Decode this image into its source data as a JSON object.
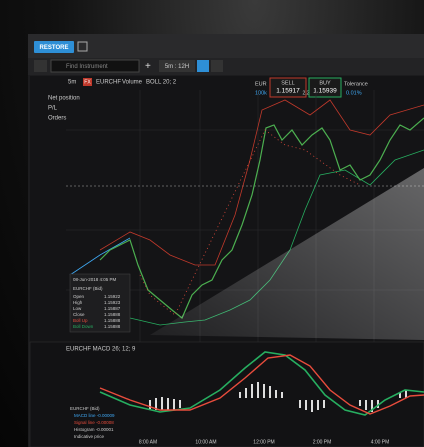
{
  "toolbar": {
    "restore": "RESTORE",
    "search_placeholder": "Find Instrument",
    "timeframe": "5m : 12H"
  },
  "chart_header": {
    "interval": "5m",
    "badge": "FX",
    "instrument": "EURCHF",
    "volume": "Volume",
    "indicator": "BOLL 20; 2"
  },
  "trade_panel": {
    "currency": "EUR",
    "amount": "100k",
    "sell_label": "SELL",
    "sell_price": "1.15917",
    "spread": "2.2",
    "buy_label": "BUY",
    "buy_price": "1.15939",
    "tolerance_label": "Tolerance",
    "tolerance": "0.01%"
  },
  "position": [
    "Net position",
    "P/L",
    "Orders"
  ],
  "tooltip": {
    "date": "08-Jun-2018 4:05 PM",
    "title": "EURCHF (Bid)",
    "rows": [
      [
        "Open",
        "1.15922"
      ],
      [
        "High",
        "1.15923"
      ],
      [
        "Low",
        "1.15887"
      ],
      [
        "Close",
        "1.15888"
      ],
      [
        "Boll Up",
        "1.15888"
      ],
      [
        "Boll Down",
        "1.15888"
      ]
    ]
  },
  "macd_panel": {
    "title": "EURCHF  MACD 26; 12; 9",
    "legend": [
      "EURCHF (Bid)",
      "MACD line -0.00009",
      "Signal line -0.00008",
      "Histogram -0.00001",
      "Indicative price"
    ]
  },
  "x_axis": [
    "8:00 AM",
    "10:00 AM",
    "12:00 PM",
    "2:00 PM",
    "4:00 PM"
  ]
}
